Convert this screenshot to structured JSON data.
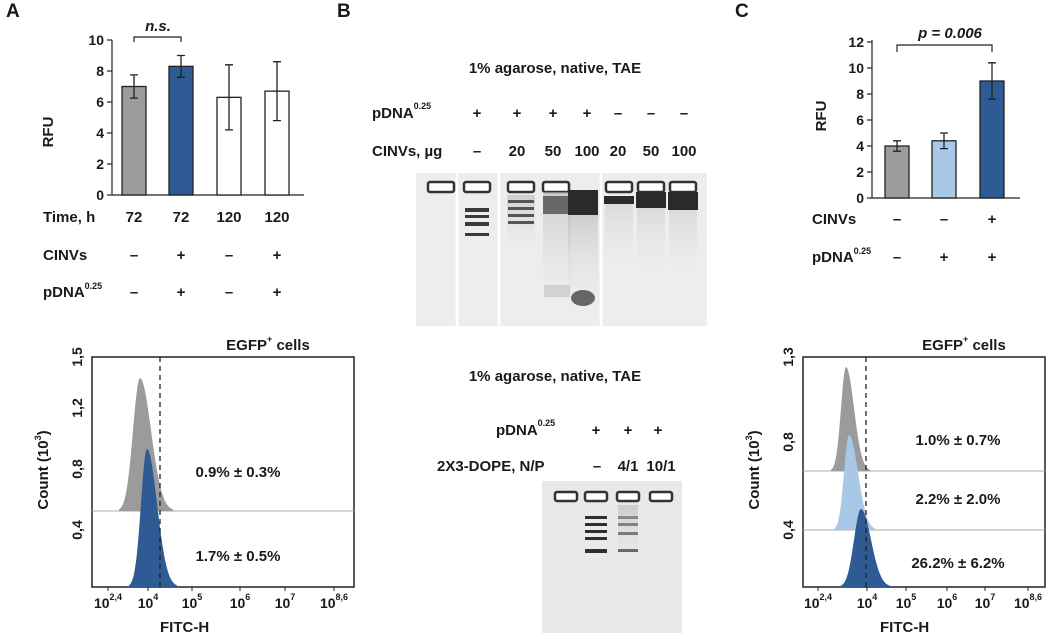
{
  "panels": {
    "A": {
      "letter": "A",
      "bar_chart": {
        "type": "bar",
        "ylabel": "RFU",
        "ylim": [
          0,
          10
        ],
        "yticks": [
          "0",
          "2",
          "4",
          "6",
          "8",
          "10"
        ],
        "row_labels": {
          "time": "Time, h",
          "cinvs": "CINVs",
          "pdna": "pDNA",
          "pdna_sup": "0.25"
        },
        "categories": [
          "72",
          "72",
          "120",
          "120"
        ],
        "cinvs_row": [
          "–",
          "+",
          "–",
          "+"
        ],
        "pdna_row": [
          "–",
          "+",
          "–",
          "+"
        ],
        "values": [
          7.0,
          8.3,
          6.3,
          6.7
        ],
        "errors": [
          0.75,
          0.7,
          2.1,
          1.9
        ],
        "colors": [
          "#9b9b9b",
          "#2f5b95",
          "#ffffff",
          "#ffffff"
        ],
        "significance": "n.s."
      },
      "histogram": {
        "title": "EGFP",
        "title_sup": "+",
        "title_rest": " cells",
        "ylabel": "Count (10",
        "ylabel_sup": "3",
        "ylabel_end": ")",
        "xlabel": "FITC-H",
        "y_ticks": [
          "0,4",
          "0,8",
          "1,2",
          "1,5"
        ],
        "x_ticks": [
          "10",
          "10",
          "10",
          "10",
          "10"
        ],
        "x_tick_exps": [
          "2,4",
          "4",
          "5",
          "6",
          "7",
          "8,6"
        ],
        "x_min_label": "10",
        "labels": [
          "0.9% ± 0.3%",
          "1.7% ± 0.5%"
        ],
        "colors": [
          "#9b9b9b",
          "#2f5b95"
        ]
      }
    },
    "B": {
      "letter": "B",
      "gel1": {
        "title": "1% agarose, native, TAE",
        "pdna": "pDNA",
        "pdna_sup": "0.25",
        "cinvs_label": "CINVs, µg",
        "pdna_row": [
          "+",
          "+",
          "+",
          "+",
          "–",
          "–",
          "–"
        ],
        "cinvs_row": [
          "–",
          "20",
          "50",
          "100",
          "20",
          "50",
          "100"
        ]
      },
      "gel2": {
        "title": "1% agarose, native, TAE",
        "pdna": "pDNA",
        "pdna_sup": "0.25",
        "dope_label": "2X3-DOPE, N/P",
        "pdna_row": [
          "+",
          "+",
          "+"
        ],
        "np_row": [
          "–",
          "4/1",
          "10/1"
        ]
      }
    },
    "C": {
      "letter": "C",
      "bar_chart": {
        "type": "bar",
        "ylabel": "RFU",
        "ylim": [
          0,
          12
        ],
        "yticks": [
          "0",
          "2",
          "4",
          "6",
          "8",
          "10",
          "12"
        ],
        "row_labels": {
          "cinvs": "CINVs",
          "pdna": "pDNA",
          "pdna_sup": "0.25"
        },
        "cinvs_row": [
          "–",
          "–",
          "+"
        ],
        "pdna_row": [
          "–",
          "+",
          "+"
        ],
        "values": [
          4.0,
          4.4,
          9.0
        ],
        "errors": [
          0.4,
          0.6,
          1.4
        ],
        "colors": [
          "#9b9b9b",
          "#a9c7e6",
          "#2f5b95"
        ],
        "significance": "p = 0.006"
      },
      "histogram": {
        "title": "EGFP",
        "title_sup": "+",
        "title_rest": " cells",
        "ylabel": "Count (10",
        "ylabel_sup": "3",
        "ylabel_end": ")",
        "xlabel": "FITC-H",
        "y_ticks": [
          "0,4",
          "0,8",
          "1,3"
        ],
        "x_tick_exps": [
          "2,4",
          "4",
          "5",
          "6",
          "7",
          "8,6"
        ],
        "x_min_label": "10",
        "labels": [
          "1.0% ± 0.7%",
          "2.2% ± 2.0%",
          "26.2% ± 6.2%"
        ],
        "colors": [
          "#9b9b9b",
          "#a9c7e6",
          "#2f5b95"
        ]
      }
    }
  },
  "chart_data": [
    {
      "type": "bar",
      "categories": [
        "72",
        "72",
        "120",
        "120"
      ],
      "values": [
        7.0,
        8.3,
        6.3,
        6.7
      ],
      "errors": [
        0.75,
        0.7,
        2.1,
        1.9
      ],
      "ylabel": "RFU",
      "xlabel": "Time, h",
      "ylim": [
        0,
        10
      ],
      "annotations": [
        "n.s."
      ]
    },
    {
      "type": "bar",
      "categories": [
        "–/–",
        "–/+",
        "+/+"
      ],
      "values": [
        4.0,
        4.4,
        9.0
      ],
      "errors": [
        0.4,
        0.6,
        1.4
      ],
      "ylabel": "RFU",
      "ylim": [
        0,
        12
      ],
      "annotations": [
        "p = 0.006"
      ]
    },
    {
      "type": "area",
      "title": "EGFP+ cells",
      "xlabel": "FITC-H",
      "ylabel": "Count (10^3)",
      "series": [
        {
          "name": "",
          "label": "0.9% ± 0.3%"
        },
        {
          "name": "",
          "label": "1.7% ± 0.5%"
        }
      ]
    },
    {
      "type": "area",
      "title": "EGFP+ cells",
      "xlabel": "FITC-H",
      "ylabel": "Count (10^3)",
      "series": [
        {
          "name": "",
          "label": "1.0% ± 0.7%"
        },
        {
          "name": "",
          "label": "2.2% ± 2.0%"
        },
        {
          "name": "",
          "label": "26.2% ± 6.2%"
        }
      ]
    }
  ]
}
